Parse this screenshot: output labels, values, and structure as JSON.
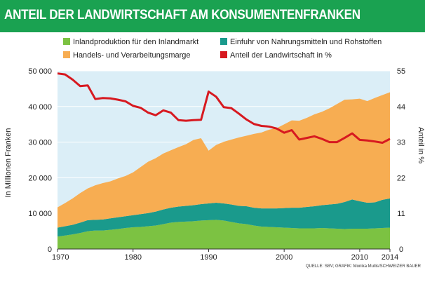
{
  "colors": {
    "title_bg": "#1aa251",
    "plot_bg": "#dbeef7",
    "inland": "#7cc242",
    "import": "#1a9a8c",
    "margin": "#f7ad52",
    "share_line": "#d71920"
  },
  "chart_data": {
    "type": "area",
    "title": "ANTEIL DER LANDWIRTSCHAFT AM KONSUMENTENFRANKEN",
    "ylabel": "In Millionen Franken",
    "y2label": "Anteil in %",
    "ylim": [
      0,
      50000
    ],
    "y2lim": [
      0,
      55
    ],
    "xlim": [
      1970,
      2014
    ],
    "x_ticks": [
      "1970",
      "1980",
      "1990",
      "2000",
      "2010",
      "2014"
    ],
    "y_ticks": [
      "0",
      "10 000",
      "20 000",
      "30 000",
      "40 000",
      "50 000"
    ],
    "y2_ticks": [
      "0",
      "11",
      "22",
      "33",
      "44",
      "55"
    ],
    "legend": [
      "Inlandproduktion für den Inlandmarkt",
      "Einfuhr von Nahrungsmitteln und Rohstoffen",
      "Handels- und Verarbeitungsmarge",
      "Anteil der Landwirtschaft in %"
    ],
    "source": "QUELLE: SBV; GRAFIK: Monika Mullis/SCHWEIZER BAUER",
    "x": [
      1970,
      1971,
      1972,
      1973,
      1974,
      1975,
      1976,
      1977,
      1978,
      1979,
      1980,
      1981,
      1982,
      1983,
      1984,
      1985,
      1986,
      1987,
      1988,
      1989,
      1990,
      1991,
      1992,
      1993,
      1994,
      1995,
      1996,
      1997,
      1998,
      1999,
      2000,
      2001,
      2002,
      2003,
      2004,
      2005,
      2006,
      2007,
      2008,
      2009,
      2010,
      2011,
      2012,
      2013,
      2014
    ],
    "series": [
      {
        "name": "Inlandproduktion für den Inlandmarkt",
        "values": [
          3500,
          3800,
          4100,
          4500,
          5000,
          5200,
          5200,
          5400,
          5600,
          5900,
          6100,
          6200,
          6400,
          6600,
          7000,
          7400,
          7600,
          7700,
          7800,
          8000,
          8100,
          8200,
          8000,
          7600,
          7200,
          7000,
          6600,
          6300,
          6200,
          6100,
          6000,
          5900,
          5800,
          5800,
          5800,
          5900,
          5800,
          5700,
          5600,
          5700,
          5700,
          5700,
          5800,
          5900,
          6000
        ]
      },
      {
        "name": "Einfuhr von Nahrungsmitteln und Rohstoffen",
        "values": [
          2500,
          2600,
          2700,
          2900,
          3100,
          3000,
          3100,
          3200,
          3300,
          3300,
          3400,
          3600,
          3700,
          3900,
          4100,
          4200,
          4300,
          4400,
          4500,
          4600,
          4700,
          4800,
          4800,
          4900,
          4900,
          5000,
          5000,
          5100,
          5200,
          5300,
          5500,
          5700,
          5800,
          6000,
          6200,
          6400,
          6700,
          7000,
          7600,
          8200,
          7700,
          7300,
          7300,
          7900,
          8200
        ]
      },
      {
        "name": "Handels- und Verarbeitungsmarge",
        "values": [
          5700,
          6500,
          7400,
          8300,
          8900,
          9700,
          10200,
          10400,
          10900,
          11300,
          12000,
          13200,
          14400,
          15000,
          15700,
          16100,
          16700,
          17300,
          18300,
          18500,
          14800,
          16200,
          17300,
          18200,
          19200,
          19800,
          20700,
          21300,
          22100,
          22500,
          23500,
          24500,
          24400,
          25000,
          25800,
          26200,
          27000,
          28000,
          28700,
          28100,
          28800,
          28500,
          29300,
          29400,
          29800
        ]
      },
      {
        "name": "Anteil der Landwirtschaft in %",
        "values": [
          54.2,
          53.9,
          52.3,
          50.3,
          50.5,
          46.3,
          46.6,
          46.5,
          46.1,
          45.6,
          44.2,
          43.6,
          42.1,
          41.3,
          42.8,
          42.1,
          39.8,
          39.6,
          39.8,
          39.9,
          48.6,
          47.0,
          43.8,
          43.5,
          41.8,
          40.0,
          38.6,
          38.0,
          37.8,
          37.2,
          35.9,
          36.7,
          33.8,
          34.3,
          34.8,
          34.0,
          33.0,
          33.0,
          34.3,
          35.7,
          33.7,
          33.5,
          33.2,
          32.8,
          34.0
        ]
      }
    ]
  }
}
